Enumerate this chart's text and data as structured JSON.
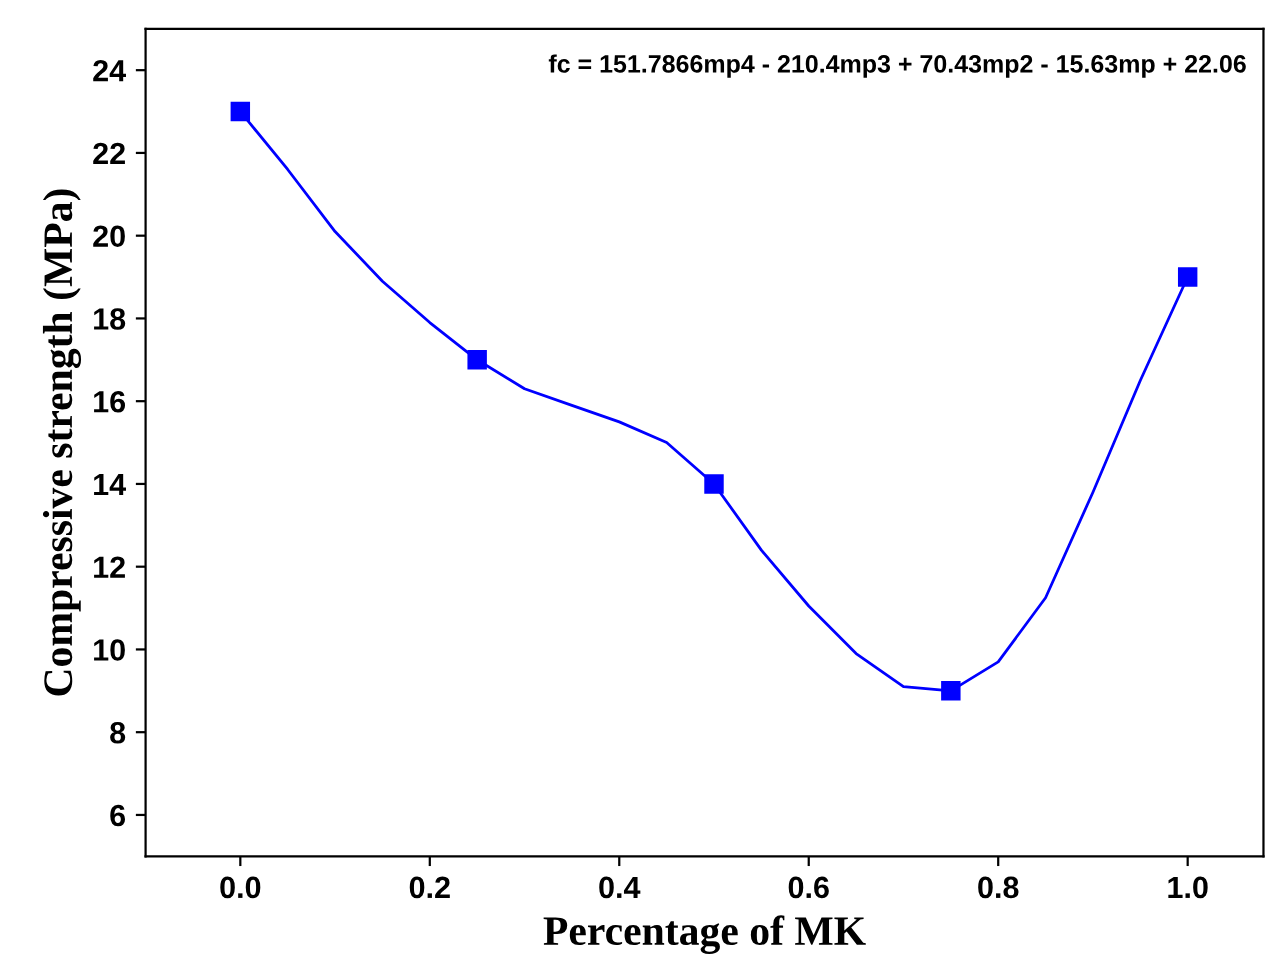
{
  "chart_data": {
    "type": "scatter",
    "xlabel": "Percentage of MK",
    "ylabel": "Compressive strength (MPa)",
    "annotations": [
      "fc = 151.7866mp4 - 210.4mp3 + 70.43mp2 - 15.63mp + 22.06"
    ],
    "x": [
      0,
      0.25,
      0.5,
      0.75,
      1.0
    ],
    "series": [
      {
        "color": "#0000ff",
        "marker": "square",
        "values": [
          23,
          17,
          14,
          9,
          19
        ]
      },
      {
        "type": "line",
        "color": "#0000ff",
        "line_style": "solid",
        "x": [
          0,
          0.05,
          0.1,
          0.15,
          0.2,
          0.25,
          0.3,
          0.35,
          0.4,
          0.45,
          0.5,
          0.55,
          0.6,
          0.65,
          0.7,
          0.75,
          0.8,
          0.85,
          0.9,
          0.95,
          1.0
        ],
        "values": [
          23,
          21.6,
          20.1,
          18.9,
          17.9,
          17,
          16.3,
          15.9,
          15.5,
          15.0,
          14,
          12.4,
          11.05,
          9.9,
          9.1,
          9,
          9.7,
          11.25,
          13.8,
          16.5,
          19
        ]
      }
    ],
    "xlim": [
      -0.1,
      1.08
    ],
    "xticks": [
      {
        "value": 0,
        "label": "0.0"
      },
      0.2,
      0.4,
      0.6,
      0.8,
      {
        "value": 1,
        "label": "1.0"
      }
    ],
    "ylim": [
      5,
      25
    ],
    "yticks": [
      6,
      8,
      10,
      12,
      14,
      16,
      18,
      20,
      22,
      24
    ],
    "grid": false,
    "legend": false
  }
}
